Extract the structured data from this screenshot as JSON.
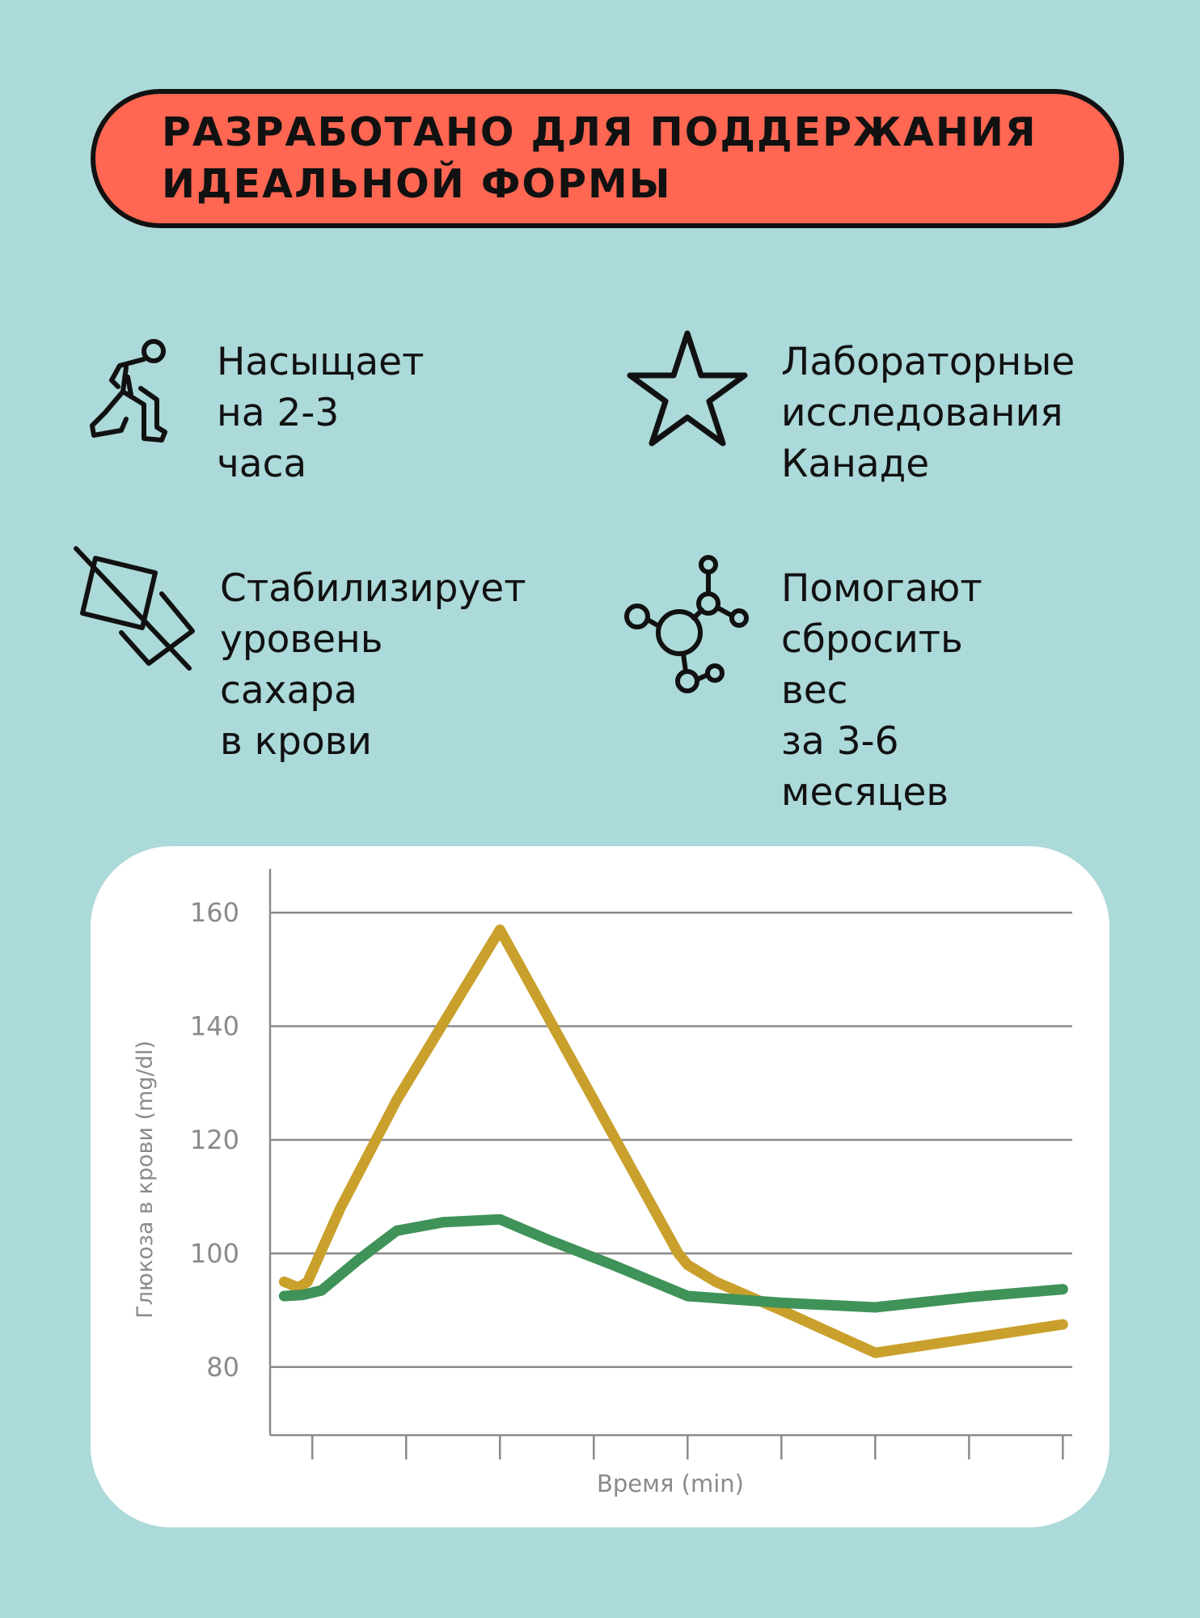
{
  "banner": {
    "title": "РАЗРАБОТАНО ДЛЯ ПОДДЕРЖАНИЯ\nИДЕАЛЬНОЙ ФОРМЫ"
  },
  "colors": {
    "background": "#acd9da",
    "banner": "#ff6752",
    "series_a": "#c9a02c",
    "series_b": "#3f9258"
  },
  "features": [
    {
      "icon": "runner-icon",
      "text": "Насыщает\nна 2-3 часа"
    },
    {
      "icon": "star-icon",
      "text": "Лабораторные\nисследования\n Канаде"
    },
    {
      "icon": "no-sugar-icon",
      "text": "Стабилизирует\nуровень сахара\nв крови"
    },
    {
      "icon": "molecule-icon",
      "text": "Помогают\nсбросить вес\nза 3-6 месяцев"
    }
  ],
  "chart_data": {
    "type": "line",
    "title": "",
    "xlabel": "Время (min)",
    "ylabel": "Глюкоза в крови (mg/dl)",
    "yticks": [
      80,
      100,
      120,
      140,
      160
    ],
    "ylim": [
      68,
      166
    ],
    "xlim": [
      -0.45,
      8.1
    ],
    "xtick_count": 9,
    "grid": true,
    "series": [
      {
        "color": "#c9a02c",
        "x": [
          -0.3,
          -0.15,
          -0.05,
          0.3,
          0.9,
          2.0,
          3.0,
          3.9,
          4.0,
          4.3,
          5.0,
          6.0,
          7.0,
          8.0
        ],
        "y": [
          95,
          94,
          95,
          108,
          127,
          157,
          127,
          100,
          98,
          95,
          90,
          82.5,
          85,
          87.5
        ]
      },
      {
        "color": "#3f9258",
        "x": [
          -0.3,
          -0.1,
          0.1,
          0.5,
          0.9,
          1.4,
          2.0,
          2.5,
          3.2,
          4.0,
          5.0,
          6.0,
          7.0,
          8.0
        ],
        "y": [
          92.5,
          92.7,
          93.5,
          99,
          104,
          105.5,
          106,
          102.5,
          98,
          92.5,
          91.3,
          90.5,
          92.3,
          93.7
        ]
      }
    ]
  }
}
